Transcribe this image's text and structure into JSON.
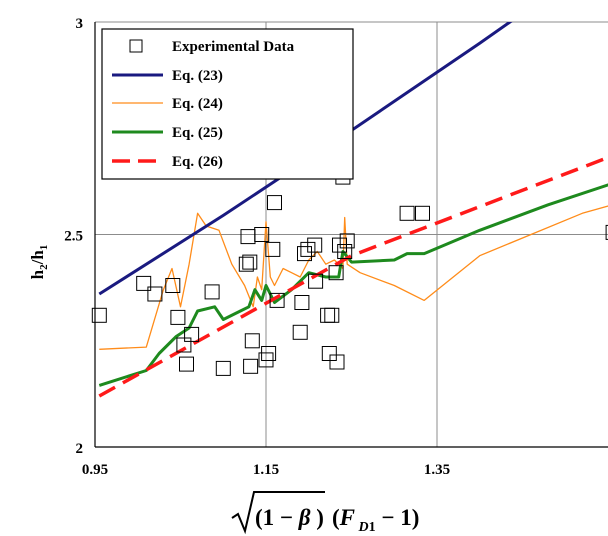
{
  "chart_data": {
    "type": "scatter",
    "xlabel": "√(1 − β)(F_D1 − 1)",
    "ylabel": "h2/h1",
    "xlim": [
      0.95,
      1.55
    ],
    "ylim": [
      2,
      3
    ],
    "x_ticks": [
      "0.95",
      "1.15",
      "1.35"
    ],
    "y_ticks": [
      "2",
      "2.5",
      "3"
    ],
    "grid": true,
    "legend_position": "top-left",
    "series": [
      {
        "name": "Experimental Data",
        "kind": "markers",
        "marker": "hollow-square",
        "color": "#000000",
        "points": [
          [
            0.955,
            2.31
          ],
          [
            1.007,
            2.385
          ],
          [
            1.02,
            2.36
          ],
          [
            1.041,
            2.38
          ],
          [
            1.047,
            2.305
          ],
          [
            1.054,
            2.24
          ],
          [
            1.057,
            2.195
          ],
          [
            1.063,
            2.265
          ],
          [
            1.087,
            2.365
          ],
          [
            1.1,
            2.185
          ],
          [
            1.127,
            2.43
          ],
          [
            1.129,
            2.495
          ],
          [
            1.131,
            2.435
          ],
          [
            1.132,
            2.19
          ],
          [
            1.134,
            2.25
          ],
          [
            1.145,
            2.5
          ],
          [
            1.15,
            2.205
          ],
          [
            1.153,
            2.22
          ],
          [
            1.158,
            2.465
          ],
          [
            1.16,
            2.575
          ],
          [
            1.163,
            2.345
          ],
          [
            1.19,
            2.27
          ],
          [
            1.192,
            2.34
          ],
          [
            1.195,
            2.455
          ],
          [
            1.199,
            2.465
          ],
          [
            1.207,
            2.475
          ],
          [
            1.208,
            2.39
          ],
          [
            1.222,
            2.31
          ],
          [
            1.224,
            2.22
          ],
          [
            1.227,
            2.31
          ],
          [
            1.232,
            2.41
          ],
          [
            1.233,
            2.2
          ],
          [
            1.236,
            2.475
          ],
          [
            1.24,
            2.635
          ],
          [
            1.242,
            2.46
          ],
          [
            1.245,
            2.485
          ],
          [
            1.315,
            2.55
          ],
          [
            1.333,
            2.55
          ],
          [
            1.556,
            2.505
          ]
        ]
      },
      {
        "name": "Eq. (23)",
        "kind": "line",
        "color": "#1a1a80",
        "width": 3,
        "points": [
          [
            0.955,
            2.36
          ],
          [
            1.1,
            2.545
          ],
          [
            1.25,
            2.745
          ],
          [
            1.4,
            2.95
          ],
          [
            1.485,
            3.07
          ]
        ]
      },
      {
        "name": "Eq. (24)",
        "kind": "line",
        "color": "#ff8c1a",
        "width": 1.3,
        "points": [
          [
            0.955,
            2.23
          ],
          [
            1.01,
            2.235
          ],
          [
            1.03,
            2.37
          ],
          [
            1.04,
            2.42
          ],
          [
            1.05,
            2.33
          ],
          [
            1.06,
            2.43
          ],
          [
            1.07,
            2.55
          ],
          [
            1.08,
            2.52
          ],
          [
            1.095,
            2.51
          ],
          [
            1.11,
            2.43
          ],
          [
            1.125,
            2.38
          ],
          [
            1.135,
            2.33
          ],
          [
            1.14,
            2.4
          ],
          [
            1.145,
            2.37
          ],
          [
            1.15,
            2.53
          ],
          [
            1.155,
            2.4
          ],
          [
            1.16,
            2.38
          ],
          [
            1.17,
            2.42
          ],
          [
            1.18,
            2.41
          ],
          [
            1.19,
            2.4
          ],
          [
            1.2,
            2.44
          ],
          [
            1.21,
            2.46
          ],
          [
            1.22,
            2.43
          ],
          [
            1.23,
            2.44
          ],
          [
            1.24,
            2.42
          ],
          [
            1.242,
            2.54
          ],
          [
            1.245,
            2.43
          ],
          [
            1.26,
            2.41
          ],
          [
            1.3,
            2.38
          ],
          [
            1.335,
            2.345
          ],
          [
            1.4,
            2.45
          ],
          [
            1.46,
            2.5
          ],
          [
            1.52,
            2.55
          ],
          [
            1.555,
            2.57
          ]
        ]
      },
      {
        "name": "Eq. (25)",
        "kind": "line",
        "color": "#1e8a1e",
        "width": 3,
        "points": [
          [
            0.955,
            2.145
          ],
          [
            1.01,
            2.18
          ],
          [
            1.025,
            2.22
          ],
          [
            1.045,
            2.26
          ],
          [
            1.06,
            2.28
          ],
          [
            1.07,
            2.32
          ],
          [
            1.09,
            2.33
          ],
          [
            1.1,
            2.3
          ],
          [
            1.12,
            2.32
          ],
          [
            1.13,
            2.33
          ],
          [
            1.137,
            2.37
          ],
          [
            1.145,
            2.345
          ],
          [
            1.15,
            2.38
          ],
          [
            1.155,
            2.36
          ],
          [
            1.16,
            2.34
          ],
          [
            1.18,
            2.37
          ],
          [
            1.2,
            2.41
          ],
          [
            1.22,
            2.4
          ],
          [
            1.235,
            2.4
          ],
          [
            1.24,
            2.46
          ],
          [
            1.25,
            2.435
          ],
          [
            1.3,
            2.44
          ],
          [
            1.315,
            2.455
          ],
          [
            1.335,
            2.455
          ],
          [
            1.4,
            2.51
          ],
          [
            1.48,
            2.57
          ],
          [
            1.555,
            2.62
          ]
        ]
      },
      {
        "name": "Eq. (26)",
        "kind": "dashed-line",
        "color": "#ff1a1a",
        "width": 3.5,
        "points": [
          [
            0.955,
            2.12
          ],
          [
            1.25,
            2.45
          ],
          [
            1.555,
            2.685
          ]
        ]
      }
    ]
  }
}
